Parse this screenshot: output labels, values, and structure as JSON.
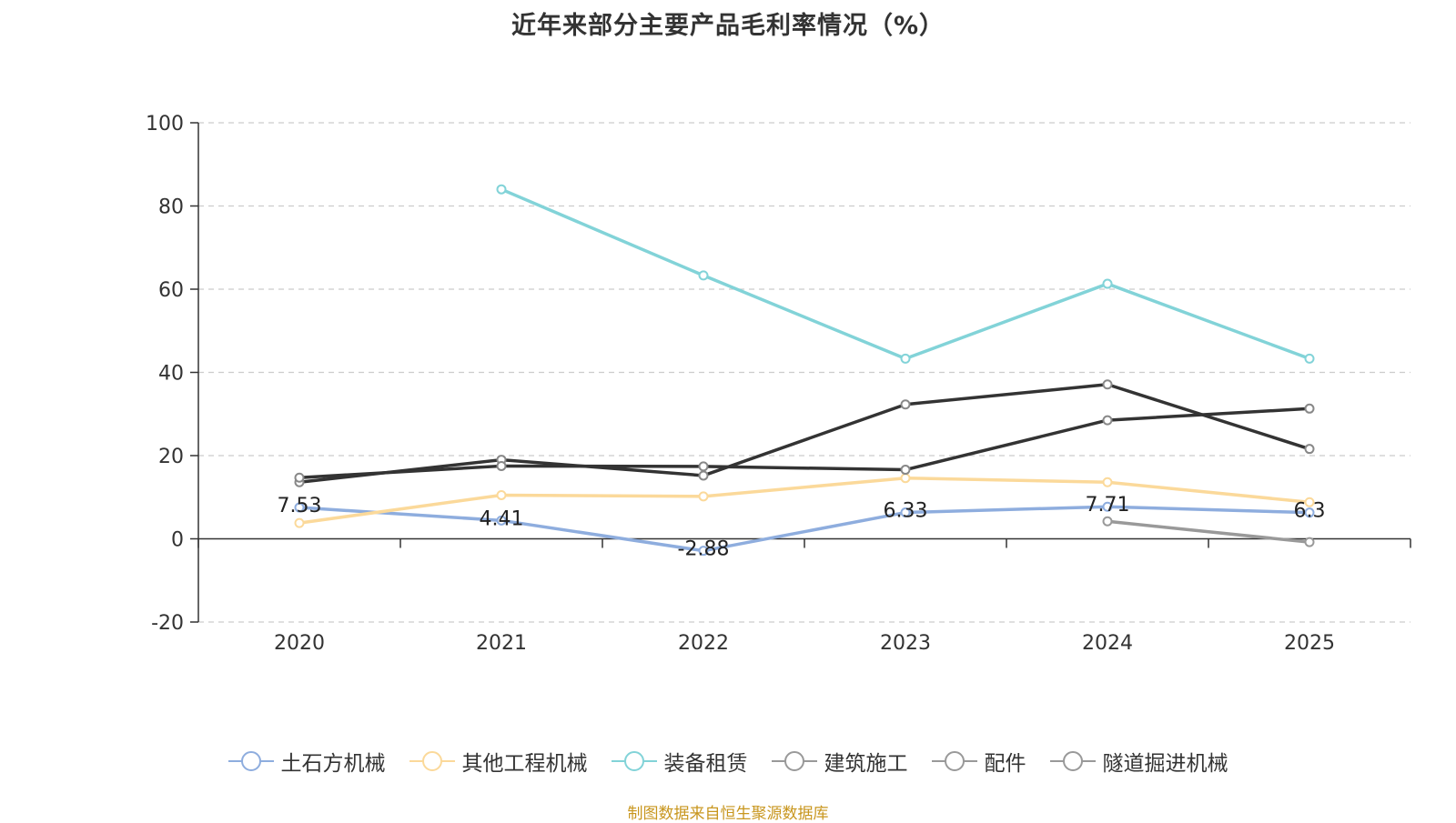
{
  "title": "近年来部分主要产品毛利率情况（%）",
  "source": "制图数据来自恒生聚源数据库",
  "chart_data": {
    "type": "line",
    "title": "近年来部分主要产品毛利率情况（%）",
    "categories": [
      "2020",
      "2021",
      "2022",
      "2023",
      "2024",
      "2025"
    ],
    "ylim": [
      -20,
      100
    ],
    "yticks": [
      -20,
      0,
      20,
      40,
      60,
      80,
      100
    ],
    "grid": true,
    "legend_position": "bottom",
    "series": [
      {
        "name": "土石方机械",
        "color": "#8eadde",
        "values": [
          7.53,
          4.41,
          -2.88,
          6.33,
          7.71,
          6.3
        ],
        "labels": [
          "7.53",
          "4.41",
          "-2.88",
          "6.33",
          "7.71",
          "6.3"
        ]
      },
      {
        "name": "其他工程机械",
        "color": "#fbd99a",
        "values": [
          3.8,
          10.5,
          10.2,
          14.6,
          13.6,
          8.8
        ]
      },
      {
        "name": "装备租赁",
        "color": "#82d3d8",
        "values": [
          null,
          84.0,
          63.3,
          43.3,
          61.3,
          43.3
        ]
      },
      {
        "name": "建筑施工",
        "color": "#333333",
        "values": [
          13.6,
          19.0,
          15.2,
          32.3,
          37.1,
          21.6
        ]
      },
      {
        "name": "配件",
        "color": "#333333",
        "values": [
          14.7,
          17.5,
          17.4,
          16.6,
          28.5,
          31.3
        ]
      },
      {
        "name": "隧道掘进机械",
        "color": "#999999",
        "values": [
          null,
          null,
          null,
          null,
          4.2,
          -0.8
        ]
      }
    ]
  }
}
